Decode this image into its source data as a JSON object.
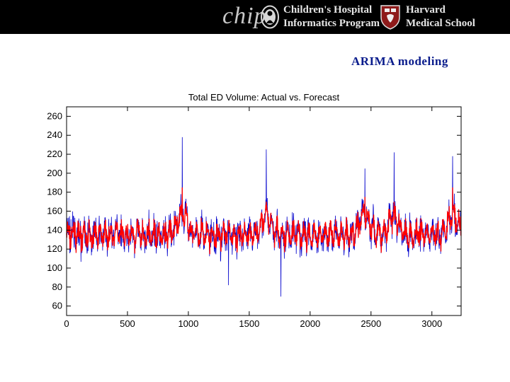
{
  "header": {
    "logo_text": "chip",
    "org_line1": "Children's Hospital",
    "org_line2": "Informatics Program",
    "school_line1": "Harvard",
    "school_line2": "Medical School"
  },
  "slide_title": "ARIMA modeling",
  "colors": {
    "actual": "#0000cc",
    "forecast": "#ff0000",
    "title": "#0a1c8c",
    "topbar": "#000000"
  },
  "chart_data": {
    "type": "line",
    "title": "Total ED Volume: Actual vs. Forecast",
    "xlabel": "",
    "ylabel": "",
    "xlim": [
      0,
      3240
    ],
    "ylim": [
      50,
      270
    ],
    "xticks": [
      0,
      500,
      1000,
      1500,
      2000,
      2500,
      3000
    ],
    "yticks": [
      60,
      80,
      100,
      120,
      140,
      160,
      180,
      200,
      220,
      240,
      260
    ],
    "x_range": [
      0,
      3240
    ],
    "series": [
      {
        "name": "Actual",
        "color": "#0000cc",
        "points": 3240,
        "mean_level": 135,
        "min": 70,
        "max": 238
      },
      {
        "name": "Forecast",
        "color": "#ff0000",
        "points": 3240,
        "mean_level": 135,
        "min": 100,
        "max": 185
      }
    ],
    "peaks": [
      {
        "x": 950,
        "actual": 238,
        "forecast": 185
      },
      {
        "x": 1640,
        "actual": 225,
        "forecast": 170
      },
      {
        "x": 2450,
        "actual": 205,
        "forecast": 175
      },
      {
        "x": 2690,
        "actual": 222,
        "forecast": 170
      },
      {
        "x": 3170,
        "actual": 218,
        "forecast": 185
      }
    ],
    "troughs": [
      {
        "x": 1330,
        "actual": 82
      },
      {
        "x": 1760,
        "actual": 70
      }
    ]
  }
}
